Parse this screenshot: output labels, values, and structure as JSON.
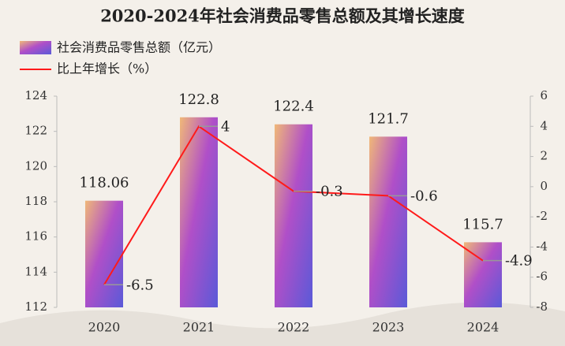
{
  "chart_data": {
    "type": "bar",
    "title": "2020-2024年社会消费品零售总额及其增长速度",
    "categories": [
      "2020",
      "2021",
      "2022",
      "2023",
      "2024"
    ],
    "series": [
      {
        "name": "社会消费品零售总额（亿元）",
        "type": "bar",
        "color": "#b04fc8",
        "values": [
          118.06,
          122.8,
          122.4,
          121.7,
          115.7
        ]
      },
      {
        "name": "比上年增长（%）",
        "type": "line",
        "axis": "y2",
        "color": "#ff1a1a",
        "values": [
          -6.5,
          4,
          -0.3,
          -0.6,
          -4.9
        ]
      }
    ],
    "ylim": [
      112,
      124
    ],
    "yticks": [
      112,
      114,
      116,
      118,
      120,
      122,
      124
    ],
    "y2lim": [
      -8,
      6
    ],
    "y2ticks": [
      -8,
      -6,
      -4,
      -2,
      0,
      2,
      4,
      6
    ],
    "grid": false
  }
}
